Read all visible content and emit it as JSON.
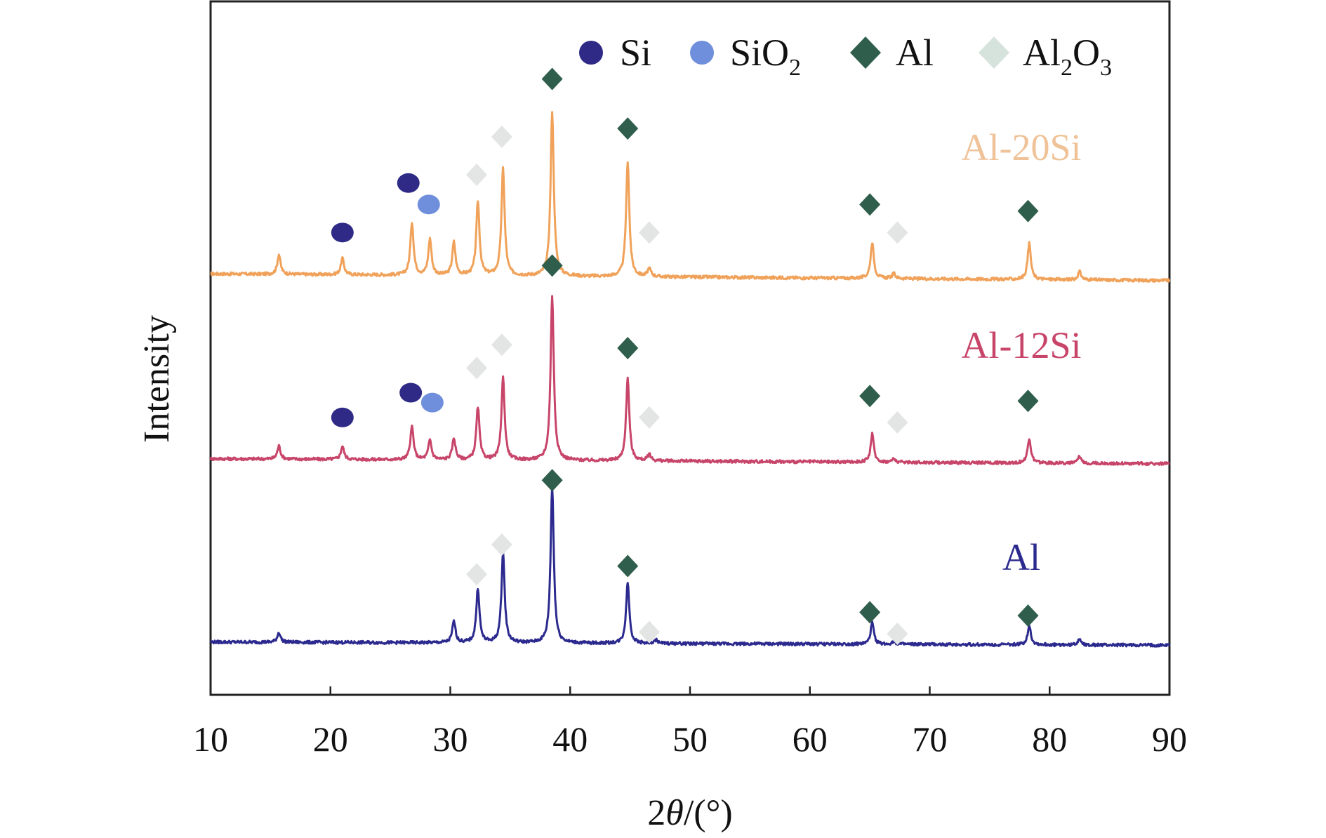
{
  "chart_data": {
    "type": "line",
    "xlabel_prefix": "2",
    "xlabel_theta": "θ",
    "xlabel_suffix": "/(°)",
    "ylabel": "Intensity",
    "xlim": [
      10,
      90
    ],
    "x_ticks": [
      "10",
      "20",
      "30",
      "40",
      "50",
      "60",
      "70",
      "80",
      "90"
    ],
    "y_ticks_shown": false,
    "grid": false,
    "legend_position": "top-right",
    "legend": [
      {
        "symbol": "circle",
        "name": "Si",
        "color": "#2e2a86"
      },
      {
        "symbol": "circle",
        "name": "SiO",
        "subscript": "2",
        "color": "#6f8fdc"
      },
      {
        "symbol": "diamond",
        "name": "Al",
        "color": "#2f5e4c"
      },
      {
        "symbol": "diamond",
        "name": "Al",
        "subscript": "2",
        "name2": "O",
        "subscript2": "3",
        "color": "#d6e3dd"
      }
    ],
    "series": [
      {
        "name": "Al-20Si",
        "color": "#f0a25a",
        "label_color": "#f0c298",
        "baseline": 2.3,
        "baseline_slope": -0.04,
        "peaks": [
          {
            "x": 15.7,
            "h": 0.12
          },
          {
            "x": 21.0,
            "h": 0.1
          },
          {
            "x": 26.8,
            "h": 0.32
          },
          {
            "x": 28.3,
            "h": 0.22
          },
          {
            "x": 30.3,
            "h": 0.2
          },
          {
            "x": 32.3,
            "h": 0.45
          },
          {
            "x": 34.4,
            "h": 0.65
          },
          {
            "x": 38.5,
            "h": 1.0
          },
          {
            "x": 44.8,
            "h": 0.7
          },
          {
            "x": 46.6,
            "h": 0.05
          },
          {
            "x": 65.2,
            "h": 0.22
          },
          {
            "x": 67.0,
            "h": 0.03
          },
          {
            "x": 78.3,
            "h": 0.22
          },
          {
            "x": 82.5,
            "h": 0.05
          }
        ],
        "markers": [
          {
            "phase": "Si",
            "x": 21.0,
            "y": 2.55
          },
          {
            "phase": "Si",
            "x": 26.5,
            "y": 2.85
          },
          {
            "phase": "SiO2",
            "x": 28.2,
            "y": 2.72
          },
          {
            "phase": "Al2O3",
            "x": 32.2,
            "y": 2.9
          },
          {
            "phase": "Al2O3",
            "x": 34.3,
            "y": 3.13
          },
          {
            "phase": "Al",
            "x": 38.5,
            "y": 3.48
          },
          {
            "phase": "Al",
            "x": 44.8,
            "y": 3.18
          },
          {
            "phase": "Al2O3",
            "x": 46.6,
            "y": 2.55
          },
          {
            "phase": "Al",
            "x": 65.0,
            "y": 2.72
          },
          {
            "phase": "Al2O3",
            "x": 67.3,
            "y": 2.55
          },
          {
            "phase": "Al",
            "x": 78.2,
            "y": 2.68
          }
        ]
      },
      {
        "name": "Al-12Si",
        "color": "#c8456a",
        "label_color": "#c8456a",
        "baseline": 1.18,
        "baseline_slope": -0.03,
        "peaks": [
          {
            "x": 15.7,
            "h": 0.08
          },
          {
            "x": 21.0,
            "h": 0.08
          },
          {
            "x": 26.8,
            "h": 0.2
          },
          {
            "x": 28.3,
            "h": 0.12
          },
          {
            "x": 30.3,
            "h": 0.13
          },
          {
            "x": 32.3,
            "h": 0.32
          },
          {
            "x": 34.4,
            "h": 0.5
          },
          {
            "x": 38.5,
            "h": 1.0
          },
          {
            "x": 44.8,
            "h": 0.5
          },
          {
            "x": 46.6,
            "h": 0.04
          },
          {
            "x": 65.2,
            "h": 0.17
          },
          {
            "x": 67.0,
            "h": 0.02
          },
          {
            "x": 78.3,
            "h": 0.15
          },
          {
            "x": 82.5,
            "h": 0.04
          }
        ],
        "markers": [
          {
            "phase": "Si",
            "x": 21.0,
            "y": 1.43
          },
          {
            "phase": "Si",
            "x": 26.7,
            "y": 1.58
          },
          {
            "phase": "SiO2",
            "x": 28.5,
            "y": 1.52
          },
          {
            "phase": "Al2O3",
            "x": 32.2,
            "y": 1.73
          },
          {
            "phase": "Al2O3",
            "x": 34.3,
            "y": 1.87
          },
          {
            "phase": "Al",
            "x": 38.5,
            "y": 2.35
          },
          {
            "phase": "Al",
            "x": 44.8,
            "y": 1.85
          },
          {
            "phase": "Al2O3",
            "x": 46.6,
            "y": 1.43
          },
          {
            "phase": "Al",
            "x": 65.0,
            "y": 1.56
          },
          {
            "phase": "Al2O3",
            "x": 67.3,
            "y": 1.4
          },
          {
            "phase": "Al",
            "x": 78.2,
            "y": 1.53
          }
        ]
      },
      {
        "name": "Al",
        "color": "#2c2a8e",
        "label_color": "#2c2a8e",
        "baseline": 0.07,
        "baseline_slope": -0.02,
        "peaks": [
          {
            "x": 15.7,
            "h": 0.06
          },
          {
            "x": 30.3,
            "h": 0.13
          },
          {
            "x": 32.3,
            "h": 0.33
          },
          {
            "x": 34.4,
            "h": 0.55
          },
          {
            "x": 38.5,
            "h": 0.95
          },
          {
            "x": 44.8,
            "h": 0.37
          },
          {
            "x": 47.2,
            "h": 0.02
          },
          {
            "x": 65.2,
            "h": 0.13
          },
          {
            "x": 67.0,
            "h": 0.02
          },
          {
            "x": 78.3,
            "h": 0.12
          },
          {
            "x": 82.5,
            "h": 0.04
          }
        ],
        "markers": [
          {
            "phase": "Al2O3",
            "x": 32.2,
            "y": 0.48
          },
          {
            "phase": "Al2O3",
            "x": 34.3,
            "y": 0.66
          },
          {
            "phase": "Al",
            "x": 38.5,
            "y": 1.05
          },
          {
            "phase": "Al",
            "x": 44.8,
            "y": 0.53
          },
          {
            "phase": "Al2O3",
            "x": 46.6,
            "y": 0.13
          },
          {
            "phase": "Al",
            "x": 65.0,
            "y": 0.25
          },
          {
            "phase": "Al2O3",
            "x": 67.3,
            "y": 0.12
          },
          {
            "phase": "Al",
            "x": 78.2,
            "y": 0.23
          }
        ]
      }
    ],
    "ylim": [
      -0.25,
      3.95
    ]
  }
}
